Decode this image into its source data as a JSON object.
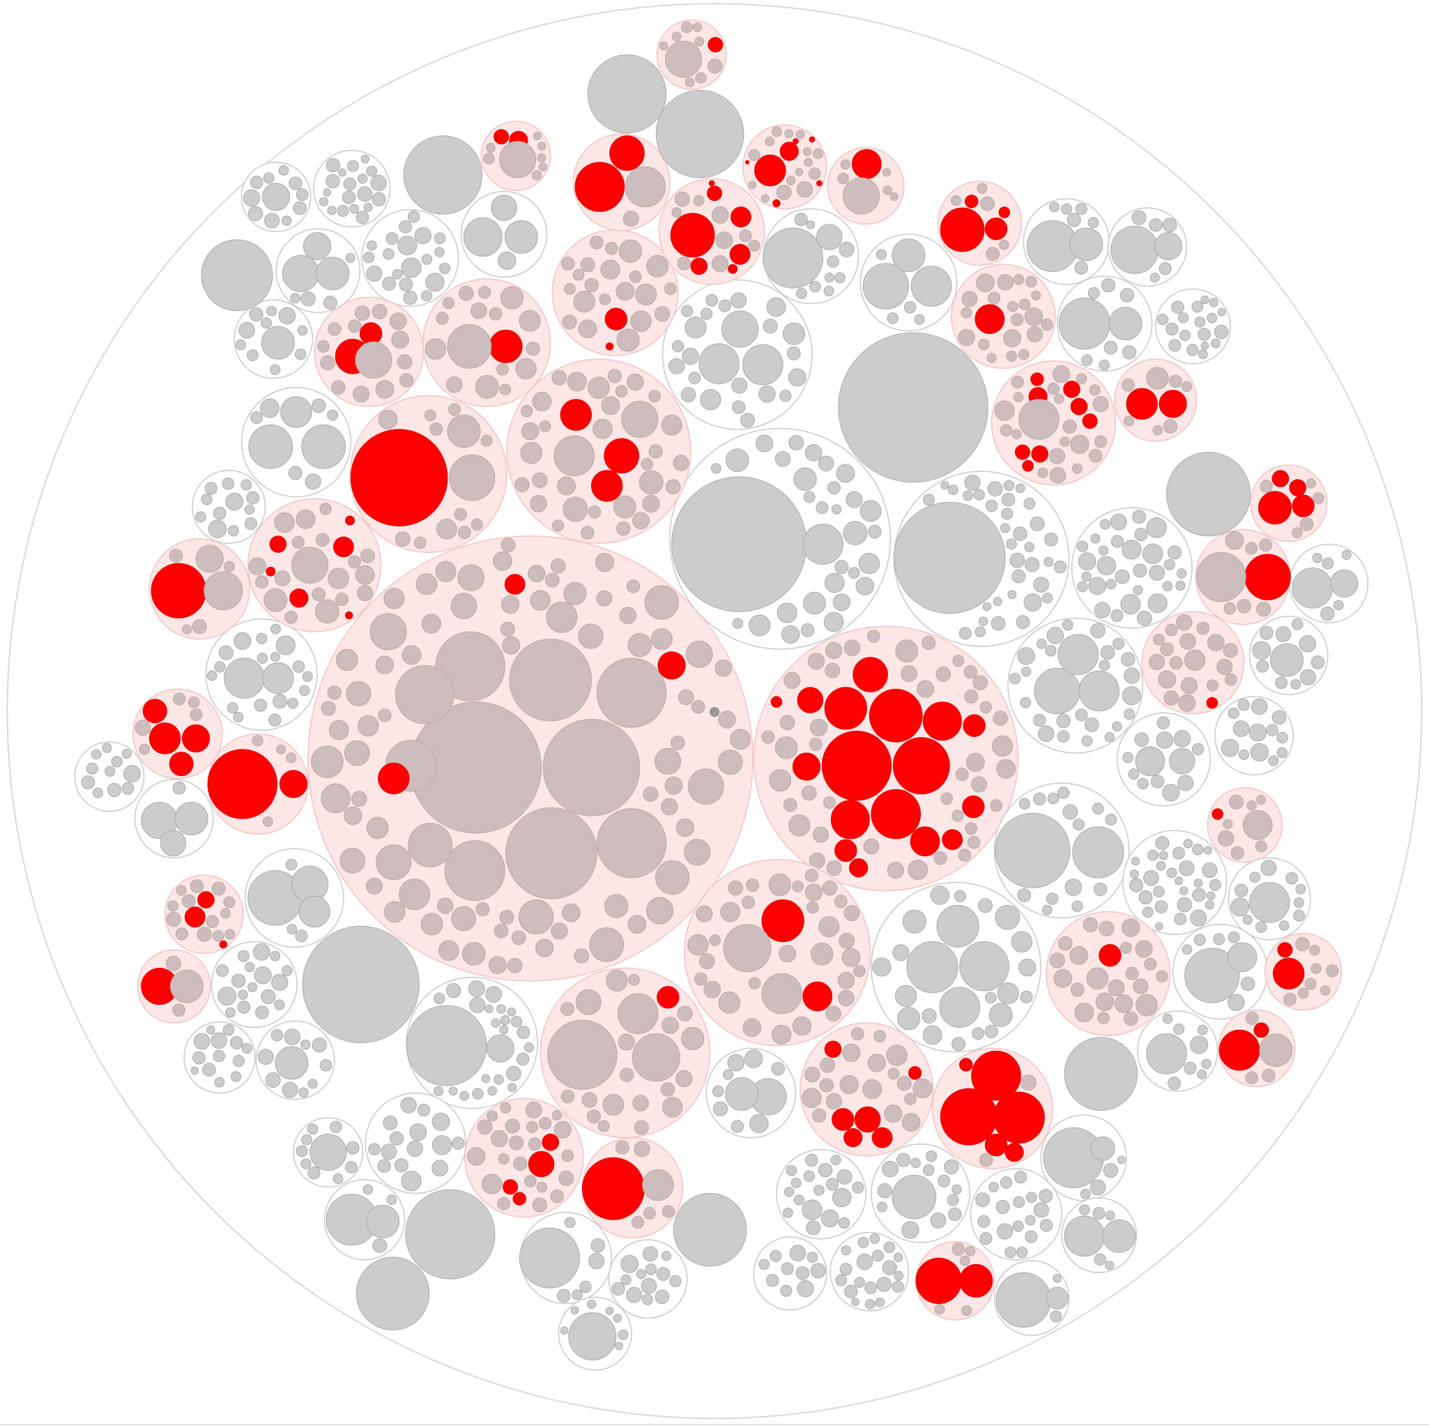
{
  "diagram": {
    "type": "circle-packing",
    "labels": [],
    "colors": {
      "background": "#ffffff",
      "root_stroke": "#d9d9d9",
      "group_stroke": "#cccccc",
      "group_fill_highlighted": "#fde6e6",
      "group_stroke_highlighted": "#f2c6c6",
      "leaf_fill": "#cccccc",
      "leaf_stroke": "#aaaaaa",
      "leaf_fill_in_highlight": "#cdbdbd",
      "highlight_leaf": "#ff0000",
      "dark_marker": "#999999"
    }
  }
}
